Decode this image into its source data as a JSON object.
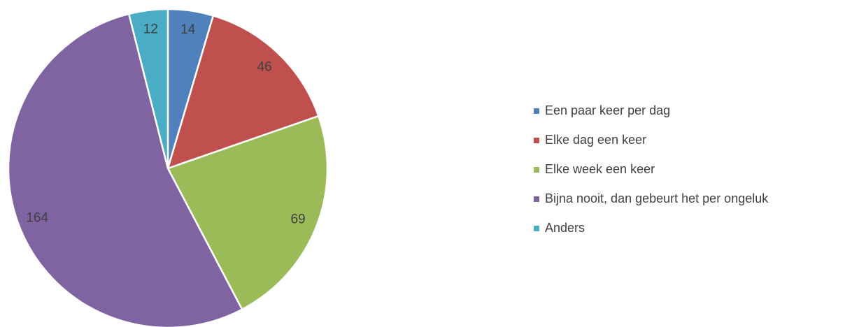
{
  "chart_data": {
    "type": "pie",
    "categories": [
      "Een paar keer per dag",
      "Elke dag een keer",
      "Elke week een keer",
      "Bijna nooit, dan gebeurt het per ongeluk",
      "Anders"
    ],
    "values": [
      14,
      46,
      69,
      164,
      12
    ],
    "colors": [
      "#4f81bd",
      "#c0504d",
      "#9bbb59",
      "#8064a2",
      "#4bacc6"
    ],
    "legend": "right"
  }
}
